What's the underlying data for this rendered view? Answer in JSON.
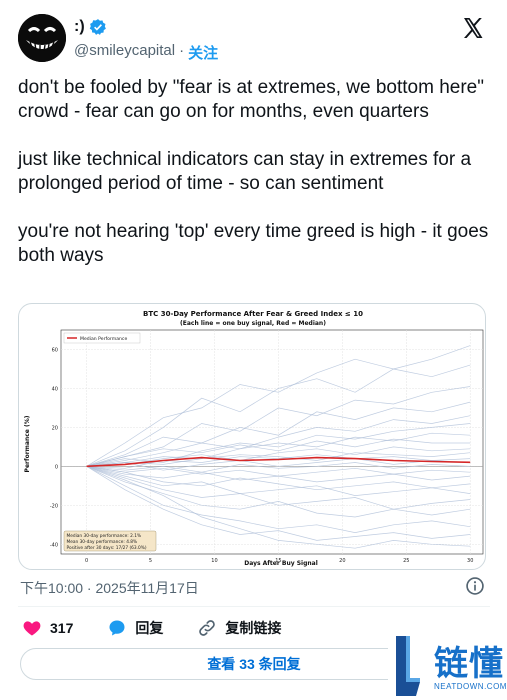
{
  "author": {
    "display_name": ":)",
    "handle": "@smileycapital",
    "separator": "·",
    "follow_label": "关注"
  },
  "tweet": {
    "paragraphs": [
      "don't be fooled by \"fear is at extremes, we bottom here\" crowd - fear can go on for months, even quarters",
      "just like technical indicators can stay in extremes for a prolonged period of time - so can sentiment",
      "you're not hearing 'top' every time greed is high - it goes both ways"
    ],
    "timestamp": "下午10:00 · 2025年11月17日"
  },
  "actions": {
    "likes_count": "317",
    "reply_label": "回复",
    "copy_link_label": "复制链接",
    "view_replies_label": "查看 33 条回复"
  },
  "watermark": {
    "text": "链懂",
    "sub": "NEATDOWN.COM"
  },
  "colors": {
    "accent": "#1d9bf0",
    "like": "#f91880",
    "median": "#d62728",
    "paths": "#aabbd6"
  },
  "chart_data": {
    "type": "line",
    "title": "BTC 30-Day Performance After Fear & Greed Index ≤ 10",
    "subtitle": "(Each line = one buy signal, Red = Median)",
    "xlabel": "Days After Buy Signal",
    "ylabel": "Performance (%)",
    "xlim": [
      -2,
      31
    ],
    "ylim": [
      -45,
      70
    ],
    "x_ticks": [
      0,
      5,
      10,
      15,
      20,
      25,
      30
    ],
    "y_ticks": [
      -40,
      -20,
      0,
      20,
      40,
      60
    ],
    "grid": true,
    "legend": {
      "position": "top-left",
      "entries": [
        "Median Performance"
      ]
    },
    "stats_box": {
      "position": "bottom-left",
      "lines": [
        "Median 30-day performance: 2.1%",
        "Mean 30-day performance: 4.8%",
        "Positive after 30 days: 17/27 (63.0%)"
      ]
    },
    "x": [
      0,
      3,
      6,
      9,
      12,
      15,
      18,
      21,
      24,
      27,
      30
    ],
    "median": [
      0,
      1,
      3,
      4.5,
      3,
      3.5,
      4.5,
      4,
      3,
      2.5,
      2.1
    ],
    "series": [
      {
        "values": [
          0,
          8,
          20,
          35,
          28,
          40,
          45,
          38,
          50,
          55,
          62
        ]
      },
      {
        "values": [
          0,
          12,
          25,
          30,
          42,
          38,
          48,
          55,
          50,
          46,
          52
        ]
      },
      {
        "values": [
          0,
          5,
          10,
          22,
          18,
          30,
          26,
          34,
          32,
          38,
          41
        ]
      },
      {
        "values": [
          0,
          6,
          15,
          12,
          20,
          16,
          28,
          24,
          30,
          28,
          33
        ]
      },
      {
        "values": [
          0,
          3,
          7,
          12,
          9,
          15,
          20,
          18,
          24,
          22,
          26
        ]
      },
      {
        "values": [
          0,
          4,
          2,
          8,
          12,
          10,
          16,
          14,
          18,
          20,
          22
        ]
      },
      {
        "values": [
          0,
          2,
          5,
          4,
          9,
          12,
          10,
          15,
          13,
          17,
          16
        ]
      },
      {
        "values": [
          0,
          5,
          9,
          7,
          11,
          8,
          13,
          10,
          14,
          12,
          12
        ]
      },
      {
        "values": [
          0,
          1,
          4,
          6,
          3,
          7,
          9,
          6,
          10,
          8,
          9
        ]
      },
      {
        "values": [
          0,
          2,
          1,
          4,
          6,
          5,
          3,
          7,
          6,
          5,
          7
        ]
      },
      {
        "values": [
          0,
          -1,
          3,
          2,
          5,
          4,
          6,
          4,
          5,
          3,
          4
        ]
      },
      {
        "values": [
          0,
          2,
          -2,
          1,
          3,
          0,
          2,
          4,
          1,
          3,
          2
        ]
      },
      {
        "values": [
          0,
          -2,
          0,
          -3,
          1,
          -1,
          0,
          2,
          -1,
          1,
          0
        ]
      },
      {
        "values": [
          0,
          -3,
          -1,
          -4,
          -2,
          -5,
          -3,
          -1,
          -4,
          -2,
          -3
        ]
      },
      {
        "values": [
          0,
          -4,
          -6,
          -3,
          -7,
          -5,
          -8,
          -6,
          -4,
          -7,
          -5
        ]
      },
      {
        "values": [
          0,
          -3,
          -8,
          -10,
          -6,
          -9,
          -12,
          -10,
          -8,
          -11,
          -9
        ]
      },
      {
        "values": [
          0,
          -5,
          -10,
          -8,
          -14,
          -12,
          -10,
          -15,
          -13,
          -11,
          -14
        ]
      },
      {
        "values": [
          0,
          -6,
          -12,
          -16,
          -14,
          -20,
          -18,
          -16,
          -22,
          -19,
          -17
        ]
      },
      {
        "values": [
          0,
          -8,
          -14,
          -20,
          -22,
          -18,
          -24,
          -26,
          -22,
          -25,
          -22
        ]
      },
      {
        "values": [
          0,
          -10,
          -20,
          -25,
          -28,
          -32,
          -30,
          -34,
          -30,
          -28,
          -31
        ]
      },
      {
        "values": [
          0,
          -12,
          -22,
          -30,
          -35,
          -33,
          -38,
          -36,
          -34,
          -37,
          -35
        ]
      },
      {
        "values": [
          0,
          -7,
          -15,
          -26,
          -32,
          -38,
          -40,
          -42,
          -38,
          -40,
          -41
        ]
      }
    ]
  }
}
